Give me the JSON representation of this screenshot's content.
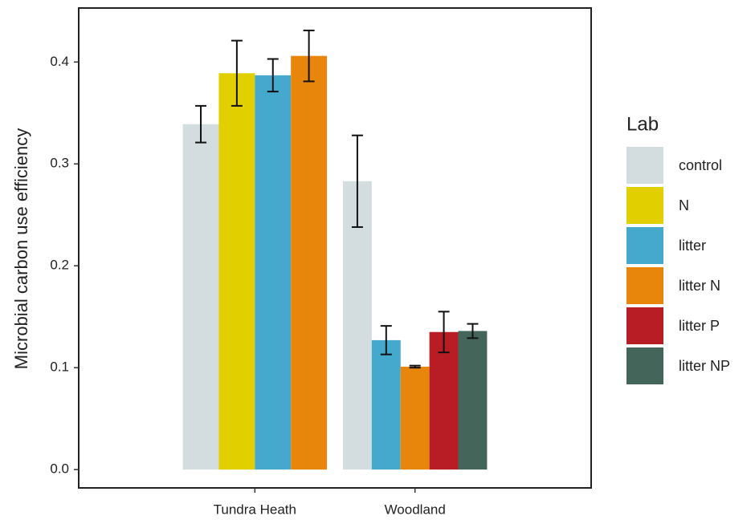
{
  "chart_data": {
    "type": "bar",
    "y_label": "Microbial carbon use efficiency",
    "legend_title": "Lab",
    "legend": "right",
    "categories": [
      "Tundra Heath",
      "Woodland"
    ],
    "series": [
      {
        "name": "control",
        "color": "#d3dcdf",
        "values": [
          0.339,
          0.283
        ],
        "errors": [
          0.018,
          0.045
        ]
      },
      {
        "name": "N",
        "color": "#e2cf00",
        "values": [
          0.389,
          null
        ],
        "errors": [
          0.032,
          null
        ]
      },
      {
        "name": "litter",
        "color": "#44a9cc",
        "values": [
          0.387,
          0.127
        ],
        "errors": [
          0.016,
          0.014
        ]
      },
      {
        "name": "litter N",
        "color": "#e8860b",
        "values": [
          0.406,
          0.101
        ],
        "errors": [
          0.025,
          0.001
        ]
      },
      {
        "name": "litter P",
        "color": "#b81c24",
        "values": [
          null,
          0.135
        ],
        "errors": [
          null,
          0.02
        ]
      },
      {
        "name": "litter NP",
        "color": "#44665a",
        "values": [
          null,
          0.136
        ],
        "errors": [
          null,
          0.007
        ]
      }
    ],
    "ylim": [
      -0.018,
      0.453
    ],
    "yticks": [
      {
        "value": 0,
        "label": "0.0"
      },
      0.1,
      0.2,
      0.3,
      0.4
    ]
  }
}
